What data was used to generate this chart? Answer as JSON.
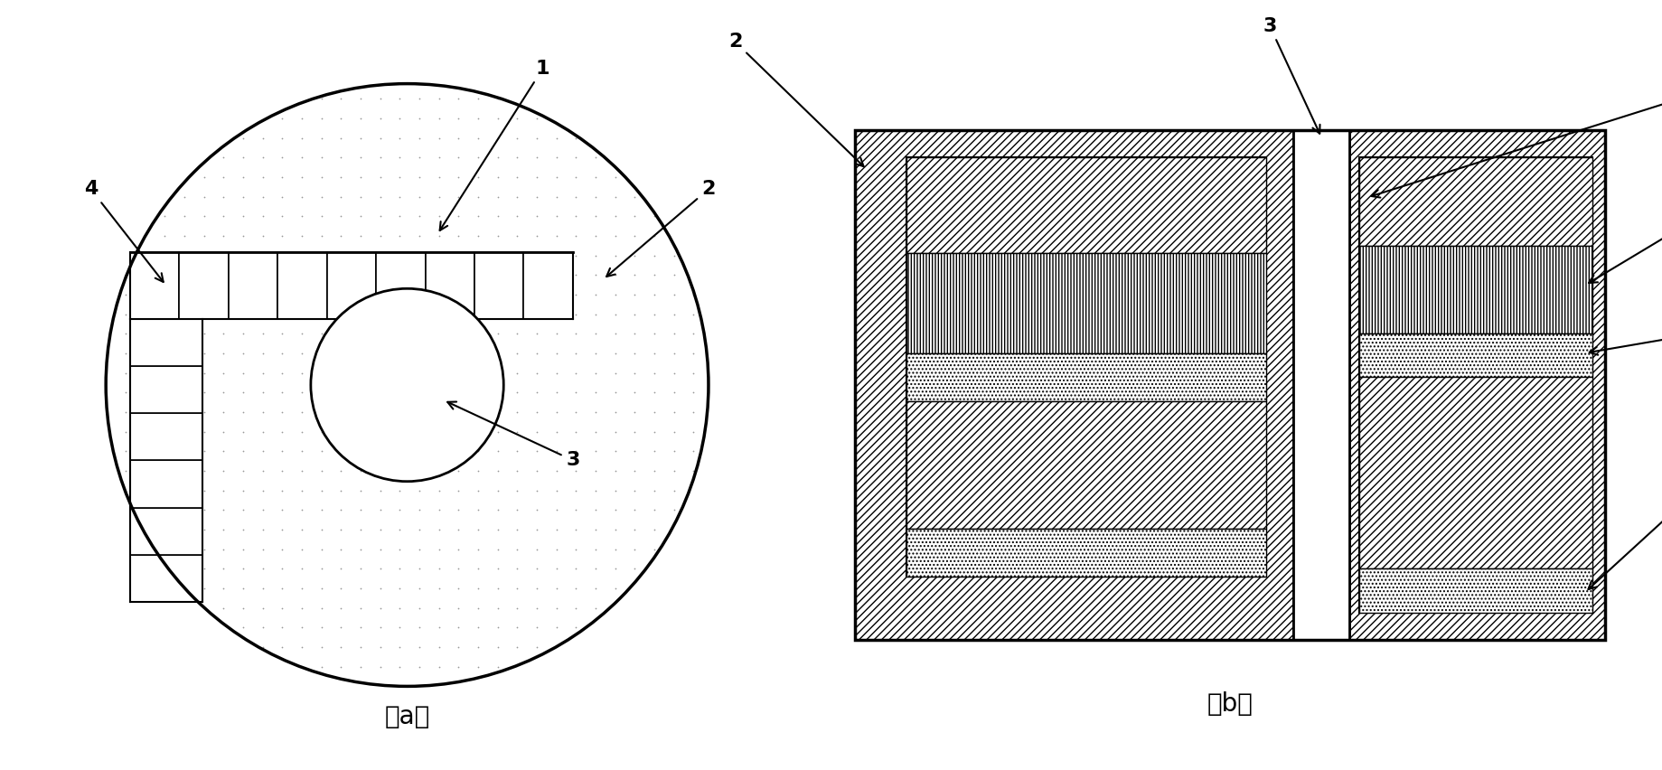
{
  "fig_width": 18.39,
  "fig_height": 8.52,
  "dpi": 100,
  "bg_color": "#ffffff",
  "label_fontsize": 16,
  "caption_fontsize": 20
}
